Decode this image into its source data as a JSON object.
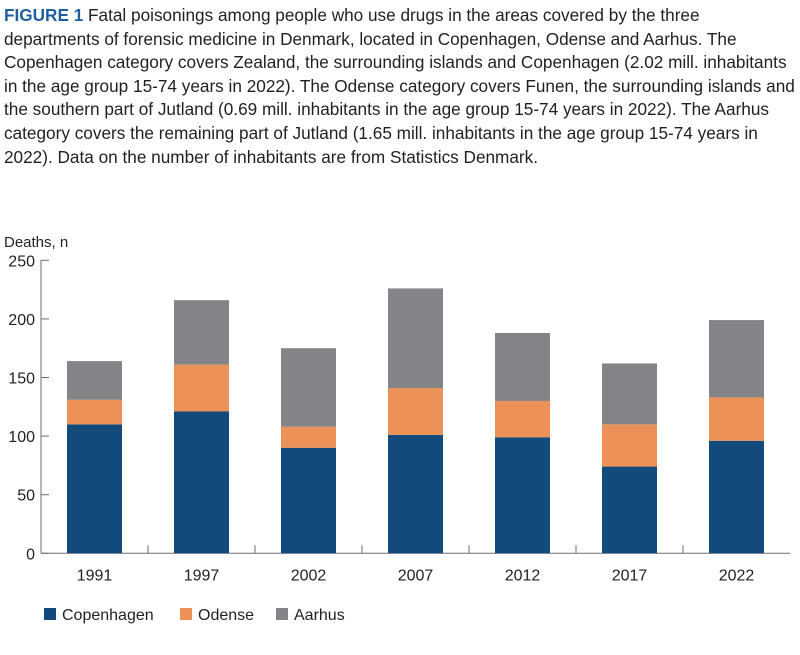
{
  "caption": {
    "label": "FIGURE 1",
    "text": " Fatal poisonings among people who use drugs in the areas covered by the three departments of forensic medicine in Denmark, located in Copenhagen, Odense and Aarhus. The Copenhagen category covers Zealand, the surrounding islands and Copenhagen (2.02 mill. inhabitants in the age group 15-74 years in 2022). The Odense category covers Funen, the surrounding islands and the southern part of Jutland (0.69 mill. inhabitants in the age group 15-74 years in 2022). The Aarhus category covers the remaining part of Jutland (1.65 mill. inhabitants in the age group 15-74 years in 2022). Data on the number of inhabitants are from Statistics Denmark."
  },
  "chart_data": {
    "type": "bar",
    "stacked": true,
    "ylabel": "Deaths, n",
    "xlabel": "",
    "ylim": [
      0,
      250
    ],
    "yticks": [
      0,
      50,
      100,
      150,
      200,
      250
    ],
    "grid": false,
    "legend_position": "bottom-left",
    "categories": [
      "1991",
      "1997",
      "2002",
      "2007",
      "2012",
      "2017",
      "2022"
    ],
    "series": [
      {
        "name": "Copenhagen",
        "color": "#134a7c",
        "values": [
          110,
          121,
          90,
          101,
          99,
          74,
          96
        ]
      },
      {
        "name": "Odense",
        "color": "#ec9158",
        "values": [
          21,
          40,
          18,
          40,
          31,
          36,
          37
        ]
      },
      {
        "name": "Aarhus",
        "color": "#838487",
        "values": [
          33,
          55,
          67,
          85,
          58,
          52,
          66
        ]
      }
    ]
  }
}
